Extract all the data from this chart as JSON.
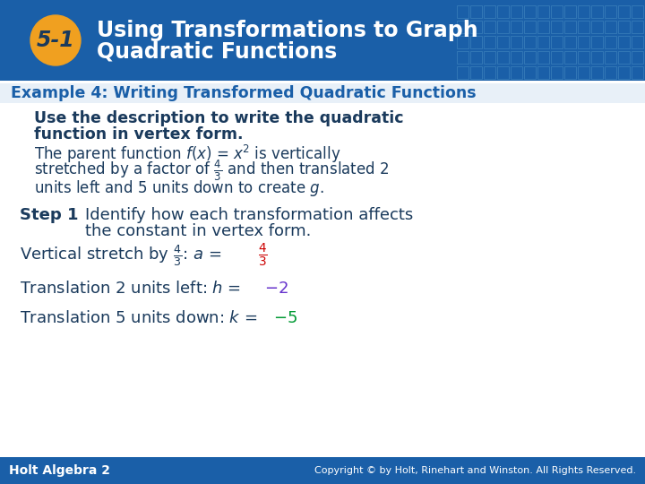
{
  "header_bg_color": "#1a5fa8",
  "header_text_color": "#ffffff",
  "header_title_line1": "Using Transformations to Graph",
  "header_title_line2": "Quadratic Functions",
  "badge_bg_color": "#f0a020",
  "badge_text": "5-1",
  "example_bar_color": "#1a5fa8",
  "example_text": "Example 4: Writing Transformed Quadratic Functions",
  "example_text_color": "#1a5fa8",
  "body_bg_color": "#ffffff",
  "footer_bg_color": "#1a5fa8",
  "footer_left": "Holt Algebra 2",
  "footer_right": "Copyright © by Holt, Rinehart and Winston. All Rights Reserved.",
  "footer_text_color": "#ffffff",
  "grid_color": "#4a90c4",
  "black": "#000000",
  "dark_blue": "#1a3a5c",
  "red": "#cc0000",
  "purple": "#6633cc",
  "green": "#009933"
}
